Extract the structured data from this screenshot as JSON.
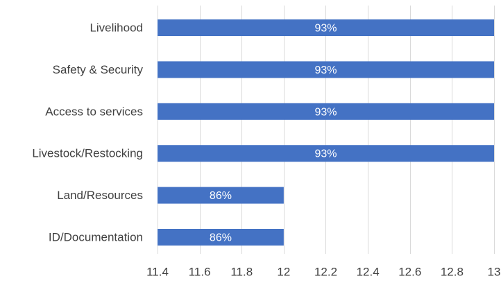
{
  "chart_data": {
    "type": "bar",
    "orientation": "horizontal",
    "categories": [
      "Livelihood",
      "Safety & Security",
      "Access to services",
      "Livestock/Restocking",
      "Land/Resources",
      "ID/Documentation"
    ],
    "values": [
      13,
      13,
      13,
      13,
      12,
      12
    ],
    "data_labels": [
      "93%",
      "93%",
      "93%",
      "93%",
      "86%",
      "86%"
    ],
    "xlim": [
      11.4,
      13
    ],
    "x_ticks": [
      11.4,
      11.6,
      11.8,
      12,
      12.2,
      12.4,
      12.6,
      12.8,
      13
    ],
    "x_tick_labels": [
      "11.4",
      "11.6",
      "11.8",
      "12",
      "12.2",
      "12.4",
      "12.6",
      "12.8",
      "13"
    ],
    "grid": "vertical",
    "bar_color": "#4472c4",
    "label_color": "#404040",
    "grid_color": "#d9d9d9"
  }
}
